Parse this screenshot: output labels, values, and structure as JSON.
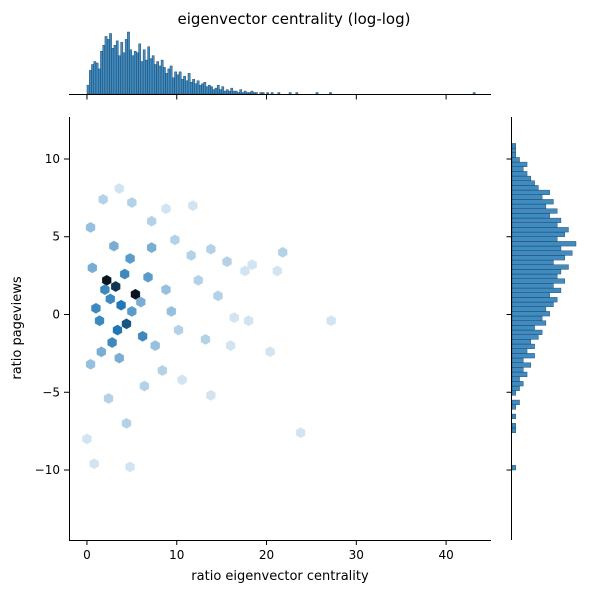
{
  "title": "eigenvector centrality (log-log)",
  "chart_data": {
    "type": "hexbin-jointplot",
    "title": "eigenvector centrality (log-log)",
    "xlabel": "ratio eigenvector centrality",
    "ylabel": "ratio pageviews",
    "xlim": [
      -2,
      45
    ],
    "ylim": [
      -14.5,
      12.7
    ],
    "xticks": [
      0,
      10,
      20,
      30,
      40
    ],
    "yticks": [
      -10,
      -5,
      0,
      5,
      10
    ],
    "xtick_labels": [
      "0",
      "10",
      "20",
      "30",
      "40"
    ],
    "ytick_labels": [
      "−10",
      "−5",
      "0",
      "5",
      "10"
    ],
    "grid": false,
    "color": "#1f77b4",
    "hexbins": [
      {
        "x": 2.2,
        "y": 2.2,
        "count": 10
      },
      {
        "x": 3.2,
        "y": 1.8,
        "count": 9
      },
      {
        "x": 5.4,
        "y": 1.3,
        "count": 10
      },
      {
        "x": 3.8,
        "y": 0.6,
        "count": 7
      },
      {
        "x": 2.6,
        "y": 1.0,
        "count": 6
      },
      {
        "x": 4.4,
        "y": -0.6,
        "count": 8
      },
      {
        "x": 3.4,
        "y": -1.0,
        "count": 7
      },
      {
        "x": 1.4,
        "y": -0.4,
        "count": 6
      },
      {
        "x": 1.0,
        "y": 0.4,
        "count": 6
      },
      {
        "x": 2.0,
        "y": 1.6,
        "count": 6
      },
      {
        "x": 6.2,
        "y": -1.4,
        "count": 6
      },
      {
        "x": 2.8,
        "y": -1.8,
        "count": 6
      },
      {
        "x": 4.2,
        "y": 2.6,
        "count": 6
      },
      {
        "x": 6.8,
        "y": 2.4,
        "count": 5
      },
      {
        "x": 4.8,
        "y": 3.6,
        "count": 5
      },
      {
        "x": 3.0,
        "y": 4.4,
        "count": 4
      },
      {
        "x": 7.2,
        "y": 4.3,
        "count": 4
      },
      {
        "x": 5.0,
        "y": 0.2,
        "count": 5
      },
      {
        "x": 6.0,
        "y": 0.8,
        "count": 4
      },
      {
        "x": 1.6,
        "y": -2.4,
        "count": 4
      },
      {
        "x": 3.6,
        "y": -2.8,
        "count": 4
      },
      {
        "x": 7.6,
        "y": -2.0,
        "count": 3
      },
      {
        "x": 8.8,
        "y": 1.6,
        "count": 3
      },
      {
        "x": 9.4,
        "y": 0.2,
        "count": 3
      },
      {
        "x": 10.2,
        "y": -1.0,
        "count": 2
      },
      {
        "x": 12.4,
        "y": 2.2,
        "count": 2
      },
      {
        "x": 11.6,
        "y": 3.8,
        "count": 2
      },
      {
        "x": 13.8,
        "y": 4.2,
        "count": 2
      },
      {
        "x": 14.6,
        "y": 1.2,
        "count": 2
      },
      {
        "x": 13.2,
        "y": -1.6,
        "count": 2
      },
      {
        "x": 15.6,
        "y": 3.4,
        "count": 2
      },
      {
        "x": 16.4,
        "y": -0.2,
        "count": 1
      },
      {
        "x": 17.6,
        "y": 2.8,
        "count": 1
      },
      {
        "x": 18.4,
        "y": 3.2,
        "count": 1
      },
      {
        "x": 21.8,
        "y": 4.0,
        "count": 2
      },
      {
        "x": 21.2,
        "y": 2.8,
        "count": 1
      },
      {
        "x": 18.0,
        "y": -0.4,
        "count": 1
      },
      {
        "x": 20.4,
        "y": -2.4,
        "count": 1
      },
      {
        "x": 16.0,
        "y": -2.0,
        "count": 1
      },
      {
        "x": 10.6,
        "y": -4.2,
        "count": 1
      },
      {
        "x": 13.8,
        "y": -5.2,
        "count": 1
      },
      {
        "x": 6.4,
        "y": -4.6,
        "count": 2
      },
      {
        "x": 2.4,
        "y": -5.4,
        "count": 2
      },
      {
        "x": 4.4,
        "y": -7.0,
        "count": 2
      },
      {
        "x": 0.0,
        "y": -8.0,
        "count": 1
      },
      {
        "x": 0.8,
        "y": -9.6,
        "count": 1
      },
      {
        "x": 4.8,
        "y": -9.8,
        "count": 1
      },
      {
        "x": 27.2,
        "y": -0.4,
        "count": 1
      },
      {
        "x": 23.8,
        "y": -7.6,
        "count": 1
      },
      {
        "x": 8.8,
        "y": 6.8,
        "count": 1
      },
      {
        "x": 11.8,
        "y": 7.0,
        "count": 1
      },
      {
        "x": 1.8,
        "y": 7.4,
        "count": 2
      },
      {
        "x": 5.0,
        "y": 7.2,
        "count": 2
      },
      {
        "x": 3.6,
        "y": 8.1,
        "count": 1
      },
      {
        "x": 0.4,
        "y": 5.6,
        "count": 3
      },
      {
        "x": 7.2,
        "y": 6.0,
        "count": 2
      },
      {
        "x": 0.6,
        "y": 3.0,
        "count": 4
      },
      {
        "x": 0.4,
        "y": -3.2,
        "count": 3
      },
      {
        "x": 9.8,
        "y": 4.8,
        "count": 2
      },
      {
        "x": 8.4,
        "y": -3.6,
        "count": 2
      }
    ],
    "x_marginal": {
      "bin_start": 0,
      "bin_width": 0.25,
      "counts": [
        6,
        16,
        20,
        22,
        21,
        17,
        29,
        33,
        39,
        37,
        41,
        31,
        33,
        36,
        26,
        35,
        28,
        37,
        42,
        30,
        26,
        29,
        28,
        34,
        22,
        30,
        23,
        32,
        24,
        26,
        20,
        22,
        19,
        23,
        18,
        14,
        17,
        19,
        11,
        15,
        13,
        15,
        10,
        12,
        9,
        14,
        8,
        10,
        7,
        9,
        6,
        7,
        8,
        5,
        6,
        5,
        3,
        4,
        6,
        3,
        5,
        2,
        3,
        2,
        4,
        2,
        2,
        1,
        3,
        1,
        2,
        1,
        1,
        2,
        1,
        1,
        0,
        1,
        1,
        0,
        1,
        0,
        1,
        0,
        0,
        1,
        0,
        0,
        0,
        0,
        1,
        0,
        0,
        1,
        0,
        0,
        0,
        0,
        0,
        0,
        0,
        0,
        1,
        0,
        0,
        0,
        0,
        0,
        1,
        0,
        0,
        0,
        0,
        0,
        0,
        0,
        0,
        0,
        0,
        0,
        0,
        0,
        0,
        0,
        0,
        0,
        0,
        0,
        0,
        0,
        0,
        0,
        0,
        0,
        0,
        0,
        0,
        0,
        0,
        0,
        0,
        0,
        0,
        0,
        0,
        0,
        0,
        0,
        0,
        0,
        0,
        0,
        0,
        0,
        0,
        0,
        0,
        0,
        0,
        0,
        0,
        0,
        0,
        0,
        0,
        0,
        0,
        0,
        0,
        0,
        0,
        0,
        1
      ]
    },
    "y_marginal": {
      "bin_start": -10,
      "bin_width": 0.3,
      "counts": [
        1,
        0,
        0,
        0,
        0,
        0,
        0,
        0,
        1,
        1,
        0,
        1,
        0,
        1,
        2,
        0,
        1,
        2,
        3,
        2,
        4,
        3,
        5,
        3,
        6,
        4,
        6,
        5,
        7,
        8,
        6,
        9,
        8,
        10,
        9,
        11,
        12,
        10,
        13,
        11,
        14,
        12,
        13,
        15,
        11,
        14,
        16,
        13,
        17,
        12,
        14,
        15,
        12,
        13,
        10,
        12,
        9,
        11,
        8,
        10,
        7,
        6,
        5,
        4,
        3,
        4,
        2,
        1,
        1,
        1
      ]
    }
  }
}
